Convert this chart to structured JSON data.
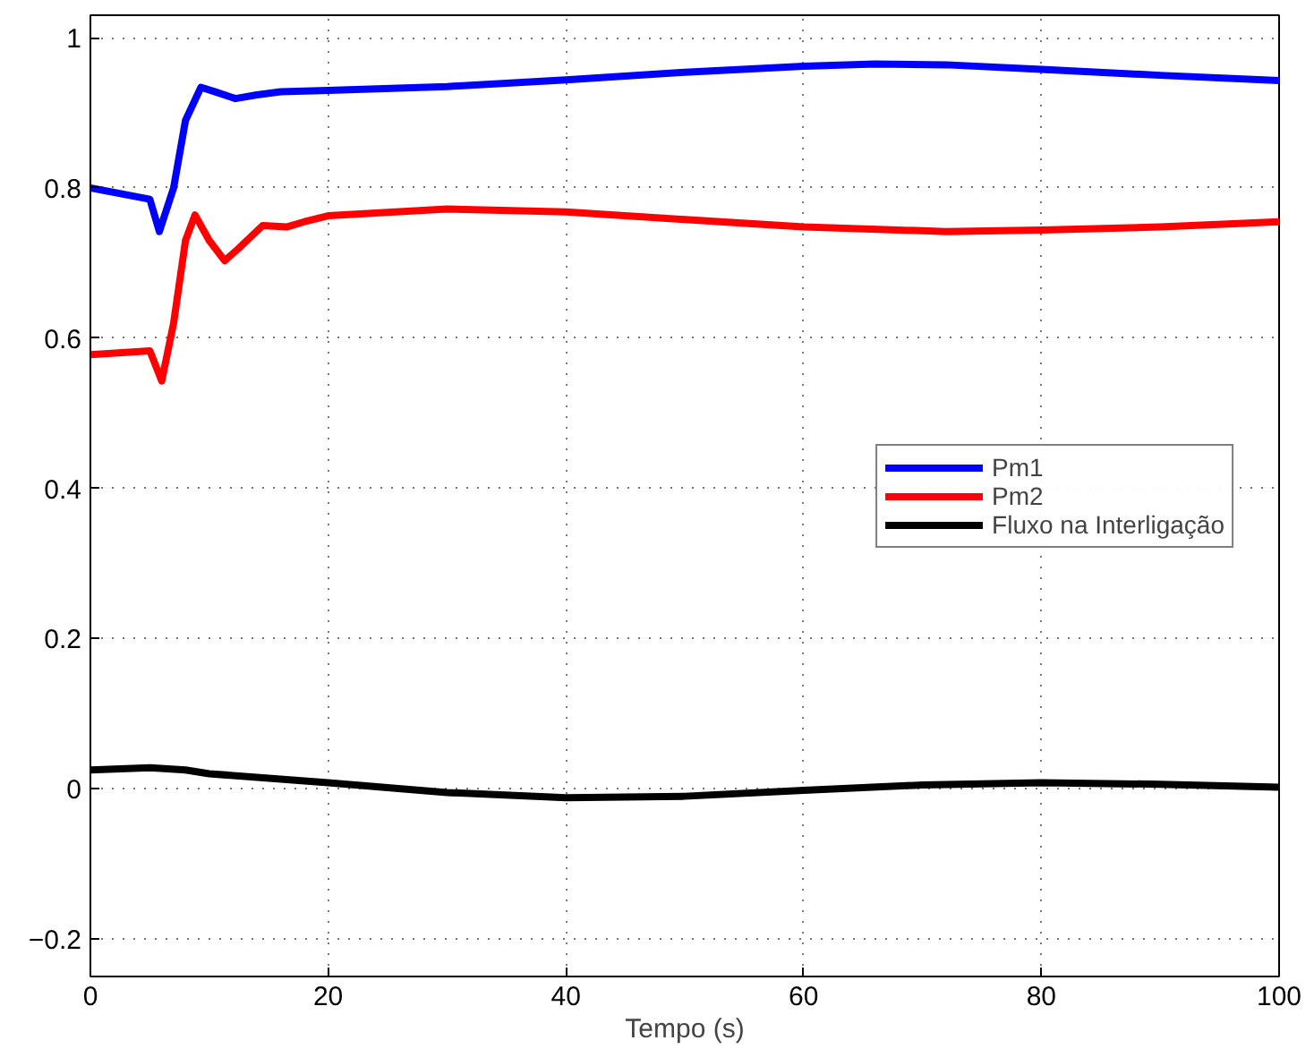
{
  "chart_data": {
    "type": "line",
    "xlabel": "Tempo (s)",
    "xlim": [
      0,
      100
    ],
    "xticks": [
      0,
      20,
      40,
      60,
      80,
      100
    ],
    "ylim": [
      -0.25,
      1.03
    ],
    "yticks": [
      {
        "value": -0.2,
        "label": "−0.2"
      },
      0,
      0.2,
      0.4,
      0.6,
      0.8,
      1
    ],
    "grid": true,
    "legend": "right",
    "line_style": "solid",
    "series": [
      {
        "name": "Pm1",
        "color": "#0000ff",
        "x": [
          0,
          5,
          5.8,
          7,
          8,
          9.3,
          10.5,
          12.2,
          14,
          16,
          20,
          30,
          40,
          50,
          60,
          66,
          72,
          80,
          90,
          100
        ],
        "values": [
          0.8,
          0.785,
          0.742,
          0.8,
          0.89,
          0.934,
          0.928,
          0.919,
          0.924,
          0.928,
          0.93,
          0.935,
          0.944,
          0.954,
          0.962,
          0.965,
          0.964,
          0.958,
          0.95,
          0.943
        ]
      },
      {
        "name": "Pm2",
        "color": "#ff0000",
        "x": [
          0,
          5,
          6,
          7,
          8,
          8.8,
          10,
          11.3,
          12.5,
          14.5,
          16.5,
          18,
          20,
          30,
          40,
          50,
          60,
          72,
          80,
          90,
          100
        ],
        "values": [
          0.578,
          0.583,
          0.543,
          0.62,
          0.73,
          0.764,
          0.73,
          0.703,
          0.72,
          0.75,
          0.748,
          0.755,
          0.763,
          0.772,
          0.768,
          0.758,
          0.748,
          0.742,
          0.744,
          0.748,
          0.755
        ]
      },
      {
        "name": "Fluxo na Interligação",
        "color": "#000000",
        "x": [
          0,
          5,
          8,
          10,
          20,
          30,
          40,
          50,
          60,
          70,
          80,
          90,
          100
        ],
        "values": [
          0.025,
          0.028,
          0.025,
          0.02,
          0.008,
          -0.005,
          -0.012,
          -0.01,
          -0.002,
          0.005,
          0.008,
          0.006,
          0.002
        ]
      }
    ]
  }
}
